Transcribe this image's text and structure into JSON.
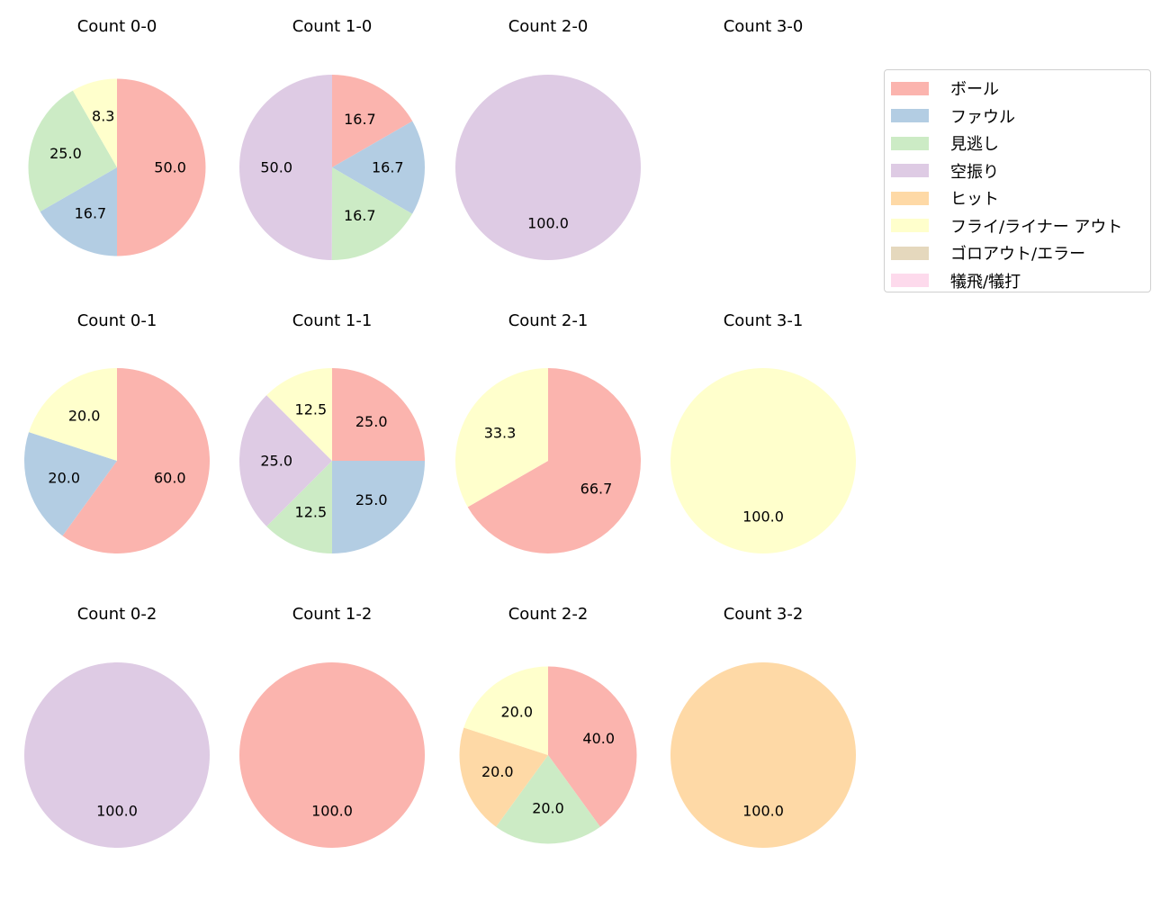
{
  "chart_data": {
    "type": "pie",
    "legend": {
      "placement": "top-right",
      "entries": [
        "ボール",
        "ファウル",
        "見逃し",
        "空振り",
        "ヒット",
        "フライ/ライナー アウト",
        "ゴロアウト/エラー",
        "犠飛/犠打"
      ]
    },
    "colors": [
      "#fbb4ae",
      "#b3cde3",
      "#ccebc5",
      "#decbe4",
      "#fed9a6",
      "#ffffcc",
      "#e5d8bd",
      "#fddaec"
    ],
    "start_angle": 90,
    "direction": "clockwise",
    "charts": [
      {
        "title": "Count 0-0",
        "values": [
          50.0,
          16.7,
          25.0,
          0,
          0,
          8.3,
          0,
          0
        ]
      },
      {
        "title": "Count 1-0",
        "values": [
          16.7,
          16.7,
          16.7,
          50.0,
          0,
          0,
          0,
          0
        ]
      },
      {
        "title": "Count 2-0",
        "values": [
          0,
          0,
          0,
          100.0,
          0,
          0,
          0,
          0
        ]
      },
      {
        "title": "Count 3-0",
        "values": [
          0,
          0,
          0,
          0,
          0,
          0,
          0,
          0
        ]
      },
      {
        "title": "Count 0-1",
        "values": [
          60.0,
          20.0,
          0,
          0,
          0,
          20.0,
          0,
          0
        ]
      },
      {
        "title": "Count 1-1",
        "values": [
          25.0,
          25.0,
          12.5,
          25.0,
          0,
          12.5,
          0,
          0
        ]
      },
      {
        "title": "Count 2-1",
        "values": [
          66.7,
          0,
          0,
          0,
          0,
          33.3,
          0,
          0
        ]
      },
      {
        "title": "Count 3-1",
        "values": [
          0,
          0,
          0,
          0,
          0,
          100.0,
          0,
          0
        ]
      },
      {
        "title": "Count 0-2",
        "values": [
          0,
          0,
          0,
          100.0,
          0,
          0,
          0,
          0
        ]
      },
      {
        "title": "Count 1-2",
        "values": [
          100.0,
          0,
          0,
          0,
          0,
          0,
          0,
          0
        ]
      },
      {
        "title": "Count 2-2",
        "values": [
          40.0,
          0,
          20.0,
          0,
          20.0,
          20.0,
          0,
          0
        ]
      },
      {
        "title": "Count 3-2",
        "values": [
          0,
          0,
          0,
          0,
          100.0,
          0,
          0,
          0
        ]
      }
    ]
  }
}
